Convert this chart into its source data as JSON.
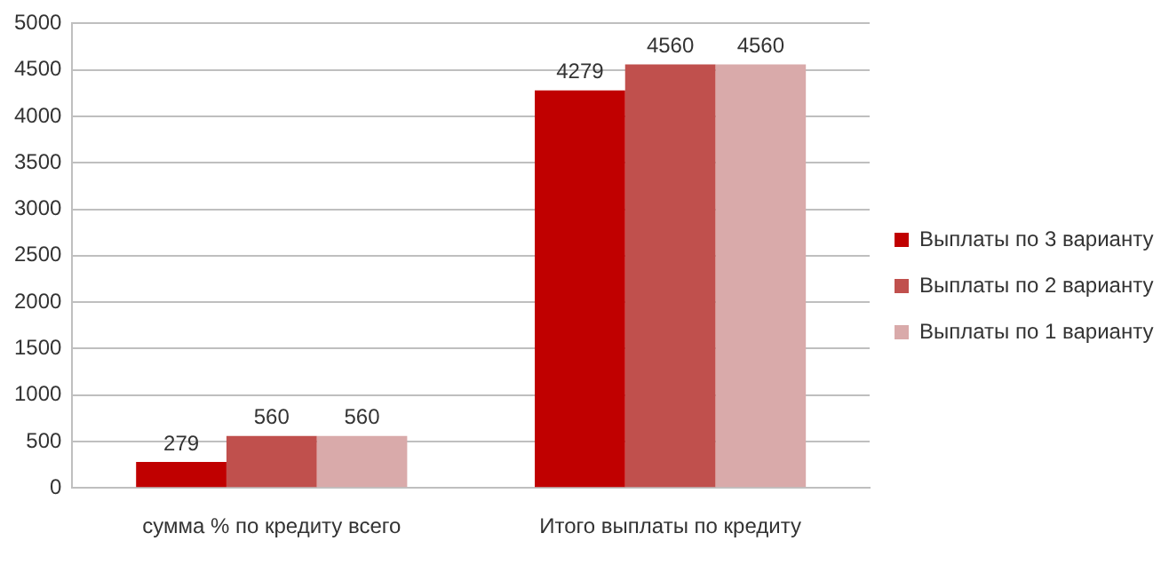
{
  "chart_data": {
    "type": "bar",
    "categories": [
      "сумма % по кредиту всего",
      "Итого выплаты по кредиту"
    ],
    "series": [
      {
        "name": "Выплаты по 3 варианту",
        "color": "#c00000",
        "values": [
          279,
          4279
        ]
      },
      {
        "name": "Выплаты по 2 варианту",
        "color": "#c0504d",
        "values": [
          560,
          4560
        ]
      },
      {
        "name": "Выплаты по 1 варианту",
        "color": "#d9aaaa",
        "values": [
          560,
          4560
        ]
      }
    ],
    "ylim": [
      0,
      5000
    ],
    "yticks": [
      0,
      500,
      1000,
      1500,
      2000,
      2500,
      3000,
      3500,
      4000,
      4500,
      5000
    ],
    "grid": "y",
    "legend": "right",
    "data_labels": true
  }
}
